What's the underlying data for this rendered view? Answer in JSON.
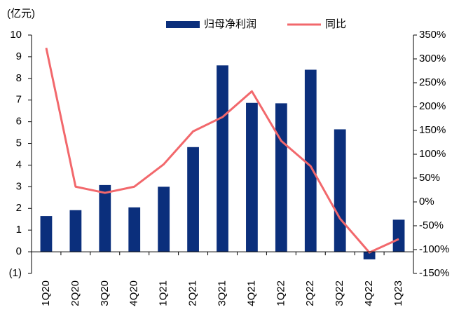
{
  "chart_data": {
    "type": "combo",
    "y_unit_label": "(亿元)",
    "categories": [
      "1Q20",
      "2Q20",
      "3Q20",
      "4Q20",
      "1Q21",
      "2Q21",
      "3Q21",
      "4Q21",
      "1Q22",
      "2Q22",
      "3Q22",
      "4Q22",
      "1Q23"
    ],
    "series": [
      {
        "name": "归母净利润",
        "type": "bar",
        "color": "#0b2f7c",
        "values": [
          1.65,
          1.92,
          3.08,
          2.05,
          3.0,
          4.83,
          8.6,
          6.87,
          6.85,
          8.4,
          5.65,
          -0.35,
          1.48
        ]
      },
      {
        "name": "同比",
        "type": "line",
        "axis": "y2",
        "color": "#f2686c",
        "values": [
          323,
          32,
          19,
          32,
          79,
          148,
          178,
          232,
          128,
          75,
          -35,
          -106,
          -78
        ]
      }
    ],
    "ylim": [
      -1,
      10
    ],
    "yticks": [
      {
        "value": -1,
        "label": "(1)"
      },
      0,
      1,
      2,
      3,
      4,
      5,
      6,
      7,
      8,
      9,
      10
    ],
    "y2lim": [
      -150,
      350
    ],
    "y2ticks": [
      {
        "value": -150,
        "label": "-150%"
      },
      {
        "value": -100,
        "label": "-100%"
      },
      {
        "value": -50,
        "label": "-50%"
      },
      {
        "value": 0,
        "label": "0%"
      },
      {
        "value": 50,
        "label": "50%"
      },
      {
        "value": 100,
        "label": "100%"
      },
      {
        "value": 150,
        "label": "150%"
      },
      {
        "value": 200,
        "label": "200%"
      },
      {
        "value": 250,
        "label": "250%"
      },
      {
        "value": 300,
        "label": "300%"
      },
      {
        "value": 350,
        "label": "350%"
      }
    ],
    "legend": "top"
  }
}
